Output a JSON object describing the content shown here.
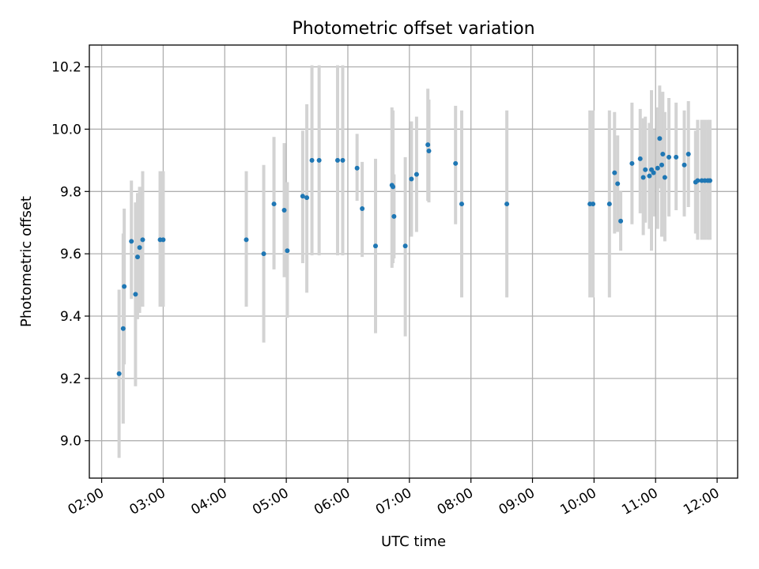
{
  "chart_data": {
    "type": "scatter",
    "title": "Photometric offset variation",
    "xlabel": "UTC time",
    "ylabel": "Photometric offset",
    "xlim": [
      "01:48",
      "12:20"
    ],
    "ylim": [
      8.88,
      10.27
    ],
    "x_ticks": [
      "02:00",
      "03:00",
      "04:00",
      "05:00",
      "06:00",
      "07:00",
      "08:00",
      "09:00",
      "10:00",
      "11:00",
      "12:00"
    ],
    "y_ticks": [
      "9.0",
      "9.2",
      "9.4",
      "9.6",
      "9.8",
      "10.0",
      "10.2"
    ],
    "grid": true,
    "colors": {
      "point": "#1f77b4",
      "errorbar": "#d3d3d3"
    },
    "series": [
      {
        "points": [
          {
            "t": "02:17",
            "y": 9.215,
            "lo": 8.945,
            "hi": 9.485
          },
          {
            "t": "02:21",
            "y": 9.36,
            "lo": 9.055,
            "hi": 9.665
          },
          {
            "t": "02:22",
            "y": 9.495,
            "lo": 9.245,
            "hi": 9.745
          },
          {
            "t": "02:29",
            "y": 9.64,
            "lo": 9.455,
            "hi": 9.835
          },
          {
            "t": "02:33",
            "y": 9.47,
            "lo": 9.175,
            "hi": 9.765
          },
          {
            "t": "02:35",
            "y": 9.59,
            "lo": 9.39,
            "hi": 9.795
          },
          {
            "t": "02:37",
            "y": 9.62,
            "lo": 9.41,
            "hi": 9.815
          },
          {
            "t": "02:40",
            "y": 9.645,
            "lo": 9.43,
            "hi": 9.865
          },
          {
            "t": "02:57",
            "y": 9.645,
            "lo": 9.43,
            "hi": 9.865
          },
          {
            "t": "03:00",
            "y": 9.645,
            "lo": 9.43,
            "hi": 9.865
          },
          {
            "t": "04:21",
            "y": 9.645,
            "lo": 9.43,
            "hi": 9.865
          },
          {
            "t": "04:38",
            "y": 9.6,
            "lo": 9.315,
            "hi": 9.885
          },
          {
            "t": "04:48",
            "y": 9.76,
            "lo": 9.55,
            "hi": 9.975
          },
          {
            "t": "04:58",
            "y": 9.74,
            "lo": 9.525,
            "hi": 9.955
          },
          {
            "t": "05:01",
            "y": 9.61,
            "lo": 9.395,
            "hi": 9.83
          },
          {
            "t": "05:16",
            "y": 9.785,
            "lo": 9.57,
            "hi": 9.995
          },
          {
            "t": "05:20",
            "y": 9.78,
            "lo": 9.475,
            "hi": 10.08
          },
          {
            "t": "05:25",
            "y": 9.9,
            "lo": 9.595,
            "hi": 10.205
          },
          {
            "t": "05:32",
            "y": 9.9,
            "lo": 9.595,
            "hi": 10.205
          },
          {
            "t": "05:50",
            "y": 9.9,
            "lo": 9.595,
            "hi": 10.205
          },
          {
            "t": "05:55",
            "y": 9.9,
            "lo": 9.595,
            "hi": 10.205
          },
          {
            "t": "06:09",
            "y": 9.875,
            "lo": 9.77,
            "hi": 9.985
          },
          {
            "t": "06:14",
            "y": 9.745,
            "lo": 9.59,
            "hi": 9.895
          },
          {
            "t": "06:27",
            "y": 9.625,
            "lo": 9.345,
            "hi": 9.905
          },
          {
            "t": "06:43",
            "y": 9.82,
            "lo": 9.555,
            "hi": 10.07
          },
          {
            "t": "06:44",
            "y": 9.815,
            "lo": 9.57,
            "hi": 10.06
          },
          {
            "t": "06:45",
            "y": 9.72,
            "lo": 9.585,
            "hi": 9.855
          },
          {
            "t": "06:56",
            "y": 9.625,
            "lo": 9.335,
            "hi": 9.91
          },
          {
            "t": "07:02",
            "y": 9.84,
            "lo": 9.655,
            "hi": 10.025
          },
          {
            "t": "07:07",
            "y": 9.855,
            "lo": 9.67,
            "hi": 10.04
          },
          {
            "t": "07:18",
            "y": 9.95,
            "lo": 9.77,
            "hi": 10.13
          },
          {
            "t": "07:19",
            "y": 9.93,
            "lo": 9.765,
            "hi": 10.095
          },
          {
            "t": "07:45",
            "y": 9.89,
            "lo": 9.695,
            "hi": 10.075
          },
          {
            "t": "07:51",
            "y": 9.76,
            "lo": 9.46,
            "hi": 10.06
          },
          {
            "t": "08:35",
            "y": 9.76,
            "lo": 9.46,
            "hi": 10.06
          },
          {
            "t": "09:56",
            "y": 9.76,
            "lo": 9.46,
            "hi": 10.06
          },
          {
            "t": "09:59",
            "y": 9.76,
            "lo": 9.46,
            "hi": 10.06
          },
          {
            "t": "10:15",
            "y": 9.76,
            "lo": 9.46,
            "hi": 10.06
          },
          {
            "t": "10:20",
            "y": 9.86,
            "lo": 9.665,
            "hi": 10.055
          },
          {
            "t": "10:23",
            "y": 9.825,
            "lo": 9.67,
            "hi": 9.98
          },
          {
            "t": "10:26",
            "y": 9.705,
            "lo": 9.61,
            "hi": 9.8
          },
          {
            "t": "10:37",
            "y": 9.89,
            "lo": 9.695,
            "hi": 10.085
          },
          {
            "t": "10:45",
            "y": 9.905,
            "lo": 9.73,
            "hi": 10.065
          },
          {
            "t": "10:48",
            "y": 9.845,
            "lo": 9.66,
            "hi": 10.035
          },
          {
            "t": "10:50",
            "y": 9.87,
            "lo": 9.7,
            "hi": 10.04
          },
          {
            "t": "10:54",
            "y": 9.85,
            "lo": 9.68,
            "hi": 10.02
          },
          {
            "t": "10:56",
            "y": 9.87,
            "lo": 9.61,
            "hi": 10.125
          },
          {
            "t": "10:58",
            "y": 9.86,
            "lo": 9.72,
            "hi": 10.0
          },
          {
            "t": "11:02",
            "y": 9.875,
            "lo": 9.68,
            "hi": 10.07
          },
          {
            "t": "11:04",
            "y": 9.97,
            "lo": 9.81,
            "hi": 10.14
          },
          {
            "t": "11:06",
            "y": 9.885,
            "lo": 9.655,
            "hi": 10.115
          },
          {
            "t": "11:07",
            "y": 9.92,
            "lo": 9.72,
            "hi": 10.12
          },
          {
            "t": "11:09",
            "y": 9.845,
            "lo": 9.64,
            "hi": 10.055
          },
          {
            "t": "11:13",
            "y": 9.91,
            "lo": 9.72,
            "hi": 10.1
          },
          {
            "t": "11:20",
            "y": 9.91,
            "lo": 9.74,
            "hi": 10.085
          },
          {
            "t": "11:28",
            "y": 9.885,
            "lo": 9.72,
            "hi": 10.06
          },
          {
            "t": "11:32",
            "y": 9.92,
            "lo": 9.75,
            "hi": 10.09
          },
          {
            "t": "11:39",
            "y": 9.83,
            "lo": 9.665,
            "hi": 9.995
          },
          {
            "t": "11:41",
            "y": 9.835,
            "lo": 9.645,
            "hi": 10.03
          },
          {
            "t": "11:45",
            "y": 9.835,
            "lo": 9.645,
            "hi": 10.03
          },
          {
            "t": "11:48",
            "y": 9.835,
            "lo": 9.645,
            "hi": 10.03
          },
          {
            "t": "11:51",
            "y": 9.835,
            "lo": 9.645,
            "hi": 10.03
          },
          {
            "t": "11:53",
            "y": 9.835,
            "lo": 9.645,
            "hi": 10.03
          }
        ]
      }
    ]
  }
}
